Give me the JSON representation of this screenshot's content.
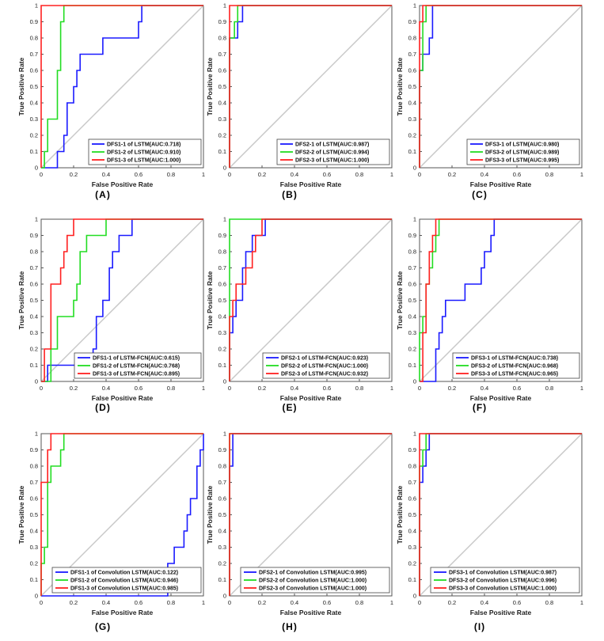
{
  "common": {
    "xlabel": "False Positive Rate",
    "ylabel": "True Positive Rate",
    "x_ticks": [
      "0",
      "0.2",
      "0.4",
      "0.6",
      "0.8",
      "1"
    ],
    "y_ticks": [
      "0",
      "0.1",
      "0.2",
      "0.3",
      "0.4",
      "0.5",
      "0.6",
      "0.7",
      "0.8",
      "0.9",
      "1"
    ],
    "series_colors": [
      "#1a1aff",
      "#22dd22",
      "#ff2020"
    ],
    "diagonal_color": "#c8c8c8",
    "axis_color": "#555555"
  },
  "chart_data": [
    {
      "type": "line",
      "panel_label": "(A)",
      "xlabel": "False Positive Rate",
      "ylabel": "True Positive Rate",
      "xlim": [
        0,
        1
      ],
      "ylim": [
        0,
        1
      ],
      "legend_position": "bottom-right",
      "series": [
        {
          "name": "DFS1-1 of LSTM(AUC:0.718)",
          "x": [
            0,
            0.1,
            0.1,
            0.14,
            0.14,
            0.16,
            0.16,
            0.2,
            0.2,
            0.22,
            0.22,
            0.24,
            0.24,
            0.26,
            0.26,
            0.32,
            0.32,
            0.38,
            0.38,
            0.6,
            0.6,
            0.62,
            0.62,
            1
          ],
          "y": [
            0,
            0,
            0.1,
            0.1,
            0.2,
            0.2,
            0.4,
            0.4,
            0.5,
            0.5,
            0.6,
            0.6,
            0.7,
            0.7,
            0.7,
            0.7,
            0.7,
            0.7,
            0.8,
            0.8,
            0.9,
            0.9,
            1,
            1
          ]
        },
        {
          "name": "DFS1-2 of LSTM(AUC:0.910)",
          "x": [
            0,
            0.02,
            0.02,
            0.04,
            0.04,
            0.1,
            0.1,
            0.12,
            0.12,
            0.14,
            0.14,
            1
          ],
          "y": [
            0,
            0,
            0.1,
            0.1,
            0.3,
            0.3,
            0.6,
            0.6,
            0.9,
            0.9,
            1,
            1
          ]
        },
        {
          "name": "DFS1-3 of LSTM(AUC:1.000)",
          "x": [
            0,
            0,
            1
          ],
          "y": [
            0,
            1,
            1
          ]
        }
      ]
    },
    {
      "type": "line",
      "panel_label": "(B)",
      "xlabel": "False Positive Rate",
      "ylabel": "True Positive Rate",
      "xlim": [
        0,
        1
      ],
      "ylim": [
        0,
        1
      ],
      "legend_position": "bottom-right",
      "series": [
        {
          "name": "DFS2-1 of LSTM(AUC:0.987)",
          "x": [
            0,
            0,
            0.05,
            0.05,
            0.08,
            0.08,
            1
          ],
          "y": [
            0,
            0.8,
            0.8,
            0.9,
            0.9,
            1,
            1
          ]
        },
        {
          "name": "DFS2-2 of LSTM(AUC:0.994)",
          "x": [
            0,
            0,
            0.03,
            0.03,
            0.05,
            0.05,
            1
          ],
          "y": [
            0,
            0.8,
            0.8,
            0.9,
            0.9,
            1,
            1
          ]
        },
        {
          "name": "DFS2-3 of LSTM(AUC:1.000)",
          "x": [
            0,
            0,
            1
          ],
          "y": [
            0,
            1,
            1
          ]
        }
      ]
    },
    {
      "type": "line",
      "panel_label": "(C)",
      "xlabel": "False Positive Rate",
      "ylabel": "True Positive Rate",
      "xlim": [
        0,
        1
      ],
      "ylim": [
        0,
        1
      ],
      "legend_position": "bottom-right",
      "series": [
        {
          "name": "DFS3-1 of LSTM(AUC:0.980)",
          "x": [
            0,
            0,
            0.02,
            0.02,
            0.04,
            0.04,
            0.06,
            0.06,
            0.08,
            0.08,
            1
          ],
          "y": [
            0,
            0.6,
            0.6,
            0.7,
            0.7,
            0.7,
            0.7,
            0.8,
            0.8,
            1,
            1
          ]
        },
        {
          "name": "DFS3-2 of LSTM(AUC:0.989)",
          "x": [
            0,
            0,
            0.02,
            0.02,
            0.04,
            0.04,
            1
          ],
          "y": [
            0,
            0.6,
            0.6,
            0.9,
            0.9,
            1,
            1
          ]
        },
        {
          "name": "DFS3-3 of LSTM(AUC:0.995)",
          "x": [
            0,
            0,
            0.02,
            0.02,
            1
          ],
          "y": [
            0,
            0.9,
            0.9,
            1,
            1
          ]
        }
      ]
    },
    {
      "type": "line",
      "panel_label": "(D)",
      "xlabel": "False Positive Rate",
      "ylabel": "True Positive Rate",
      "xlim": [
        0,
        1
      ],
      "ylim": [
        0,
        1
      ],
      "legend_position": "bottom-right",
      "series": [
        {
          "name": "DFS1-1 of LSTM-FCN(AUC:0.615)",
          "x": [
            0,
            0.04,
            0.04,
            0.06,
            0.06,
            0.32,
            0.32,
            0.34,
            0.34,
            0.38,
            0.38,
            0.42,
            0.42,
            0.44,
            0.44,
            0.48,
            0.48,
            0.56,
            0.56,
            1
          ],
          "y": [
            0,
            0,
            0.1,
            0.1,
            0.1,
            0.1,
            0.2,
            0.2,
            0.4,
            0.4,
            0.5,
            0.5,
            0.7,
            0.7,
            0.8,
            0.8,
            0.9,
            0.9,
            1,
            1
          ]
        },
        {
          "name": "DFS1-2 of LSTM-FCN(AUC:0.768)",
          "x": [
            0,
            0.06,
            0.06,
            0.1,
            0.1,
            0.14,
            0.14,
            0.2,
            0.2,
            0.22,
            0.22,
            0.24,
            0.24,
            0.28,
            0.28,
            0.32,
            0.32,
            0.4,
            0.4,
            1
          ],
          "y": [
            0,
            0,
            0.2,
            0.2,
            0.4,
            0.4,
            0.4,
            0.4,
            0.5,
            0.5,
            0.6,
            0.6,
            0.8,
            0.8,
            0.9,
            0.9,
            0.9,
            0.9,
            1,
            1
          ]
        },
        {
          "name": "DFS1-3 of LSTM-FCN(AUC:0.895)",
          "x": [
            0,
            0.02,
            0.02,
            0.06,
            0.06,
            0.12,
            0.12,
            0.14,
            0.14,
            0.16,
            0.16,
            0.18,
            0.18,
            0.2,
            0.2,
            0.26,
            0.26,
            1
          ],
          "y": [
            0,
            0,
            0.2,
            0.2,
            0.6,
            0.6,
            0.7,
            0.7,
            0.8,
            0.8,
            0.9,
            0.9,
            0.9,
            0.9,
            1,
            1,
            1,
            1
          ]
        }
      ]
    },
    {
      "type": "line",
      "panel_label": "(E)",
      "xlabel": "False Positive Rate",
      "ylabel": "True Positive Rate",
      "xlim": [
        0,
        1
      ],
      "ylim": [
        0,
        1
      ],
      "legend_position": "bottom-right",
      "series": [
        {
          "name": "DFS2-1 of LSTM-FCN(AUC:0.923)",
          "x": [
            0,
            0,
            0.02,
            0.02,
            0.04,
            0.04,
            0.08,
            0.08,
            0.1,
            0.1,
            0.14,
            0.14,
            0.18,
            0.18,
            0.22,
            0.22,
            1
          ],
          "y": [
            0,
            0.3,
            0.3,
            0.4,
            0.4,
            0.5,
            0.5,
            0.7,
            0.7,
            0.8,
            0.8,
            0.9,
            0.9,
            0.9,
            0.9,
            1,
            1
          ]
        },
        {
          "name": "DFS2-2 of LSTM-FCN(AUC:1.000)",
          "x": [
            0,
            0,
            1
          ],
          "y": [
            0,
            1,
            1
          ]
        },
        {
          "name": "DFS2-3 of LSTM-FCN(AUC:0.932)",
          "x": [
            0,
            0,
            0.02,
            0.02,
            0.04,
            0.04,
            0.06,
            0.06,
            0.1,
            0.1,
            0.14,
            0.14,
            0.16,
            0.16,
            0.2,
            0.2,
            1
          ],
          "y": [
            0,
            0.4,
            0.4,
            0.5,
            0.5,
            0.6,
            0.6,
            0.6,
            0.6,
            0.7,
            0.7,
            0.8,
            0.8,
            0.9,
            0.9,
            1,
            1
          ]
        }
      ]
    },
    {
      "type": "line",
      "panel_label": "(F)",
      "xlabel": "False Positive Rate",
      "ylabel": "True Positive Rate",
      "xlim": [
        0,
        1
      ],
      "ylim": [
        0,
        1
      ],
      "legend_position": "bottom-right",
      "series": [
        {
          "name": "DFS3-1 of LSTM-FCN(AUC:0.738)",
          "x": [
            0,
            0.1,
            0.1,
            0.12,
            0.12,
            0.14,
            0.14,
            0.16,
            0.16,
            0.18,
            0.18,
            0.28,
            0.28,
            0.38,
            0.38,
            0.4,
            0.4,
            0.44,
            0.44,
            0.46,
            0.46,
            1
          ],
          "y": [
            0,
            0,
            0.2,
            0.2,
            0.3,
            0.3,
            0.4,
            0.4,
            0.5,
            0.5,
            0.5,
            0.5,
            0.6,
            0.6,
            0.7,
            0.7,
            0.8,
            0.8,
            0.9,
            0.9,
            1,
            1
          ]
        },
        {
          "name": "DFS3-2 of LSTM-FCN(AUC:0.968)",
          "x": [
            0,
            0,
            0.02,
            0.02,
            0.04,
            0.04,
            0.06,
            0.06,
            0.08,
            0.08,
            0.1,
            0.1,
            0.12,
            0.12,
            1
          ],
          "y": [
            0,
            0.3,
            0.3,
            0.4,
            0.4,
            0.6,
            0.6,
            0.7,
            0.7,
            0.8,
            0.8,
            0.9,
            0.9,
            1,
            1
          ]
        },
        {
          "name": "DFS3-3 of LSTM-FCN(AUC:0.965)",
          "x": [
            0,
            0.02,
            0.02,
            0.04,
            0.04,
            0.06,
            0.06,
            0.08,
            0.08,
            0.1,
            0.1,
            1
          ],
          "y": [
            0,
            0,
            0.3,
            0.3,
            0.6,
            0.6,
            0.8,
            0.8,
            0.9,
            0.9,
            1,
            1
          ]
        }
      ]
    },
    {
      "type": "line",
      "panel_label": "(G)",
      "xlabel": "False Positive Rate",
      "ylabel": "True Positive Rate",
      "xlim": [
        0,
        1
      ],
      "ylim": [
        0,
        1
      ],
      "legend_position": "bottom-right",
      "series": [
        {
          "name": "DFS1-1 of Convolution LSTM(AUC:0.122)",
          "x": [
            0,
            0.78,
            0.78,
            0.82,
            0.82,
            0.84,
            0.84,
            0.88,
            0.88,
            0.9,
            0.9,
            0.92,
            0.92,
            0.94,
            0.94,
            0.96,
            0.96,
            0.98,
            0.98,
            1,
            1
          ],
          "y": [
            0,
            0,
            0.2,
            0.2,
            0.3,
            0.3,
            0.3,
            0.3,
            0.4,
            0.4,
            0.5,
            0.5,
            0.6,
            0.6,
            0.6,
            0.6,
            0.8,
            0.8,
            0.9,
            0.9,
            1
          ]
        },
        {
          "name": "DFS1-2 of Convolution LSTM(AUC:0.946)",
          "x": [
            0,
            0,
            0.02,
            0.02,
            0.04,
            0.04,
            0.06,
            0.06,
            0.1,
            0.1,
            0.12,
            0.12,
            0.14,
            0.14,
            1
          ],
          "y": [
            0,
            0.2,
            0.2,
            0.3,
            0.3,
            0.7,
            0.7,
            0.8,
            0.8,
            0.8,
            0.8,
            0.9,
            0.9,
            1,
            1
          ]
        },
        {
          "name": "DFS1-3 of Convolution LSTM(AUC:0.985)",
          "x": [
            0,
            0,
            0.04,
            0.04,
            0.06,
            0.06,
            0.08,
            0.08,
            1
          ],
          "y": [
            0,
            0.7,
            0.7,
            0.9,
            0.9,
            1,
            1,
            1,
            1
          ]
        }
      ]
    },
    {
      "type": "line",
      "panel_label": "(H)",
      "xlabel": "False Positive Rate",
      "ylabel": "True Positive Rate",
      "xlim": [
        0,
        1
      ],
      "ylim": [
        0,
        1
      ],
      "legend_position": "bottom-right",
      "series": [
        {
          "name": "DFS2-1 of Convolution LSTM(AUC:0.995)",
          "x": [
            0,
            0,
            0.02,
            0.02,
            1
          ],
          "y": [
            0,
            0.8,
            0.8,
            1,
            1
          ]
        },
        {
          "name": "DFS2-2 of Convolution LSTM(AUC:1.000)",
          "x": [
            0,
            0,
            1
          ],
          "y": [
            0,
            1,
            1
          ]
        },
        {
          "name": "DFS2-3 of Convolution LSTM(AUC:1.000)",
          "x": [
            0,
            0,
            1
          ],
          "y": [
            0,
            1,
            1
          ]
        }
      ]
    },
    {
      "type": "line",
      "panel_label": "(I)",
      "xlabel": "False Positive Rate",
      "ylabel": "True Positive Rate",
      "xlim": [
        0,
        1
      ],
      "ylim": [
        0,
        1
      ],
      "legend_position": "bottom-right",
      "series": [
        {
          "name": "DFS3-1 of Convolution LSTM(AUC:0.987)",
          "x": [
            0,
            0,
            0.02,
            0.02,
            0.04,
            0.04,
            0.06,
            0.06,
            1
          ],
          "y": [
            0,
            0.7,
            0.7,
            0.8,
            0.8,
            0.9,
            0.9,
            1,
            1
          ]
        },
        {
          "name": "DFS3-2 of Convolution LSTM(AUC:0.996)",
          "x": [
            0,
            0,
            0.02,
            0.02,
            0.04,
            0.04,
            1
          ],
          "y": [
            0,
            0.8,
            0.8,
            0.9,
            0.9,
            1,
            1
          ]
        },
        {
          "name": "DFS3-3 of Convolution LSTM(AUC:1.000)",
          "x": [
            0,
            0,
            1
          ],
          "y": [
            0,
            1,
            1
          ]
        }
      ]
    }
  ]
}
